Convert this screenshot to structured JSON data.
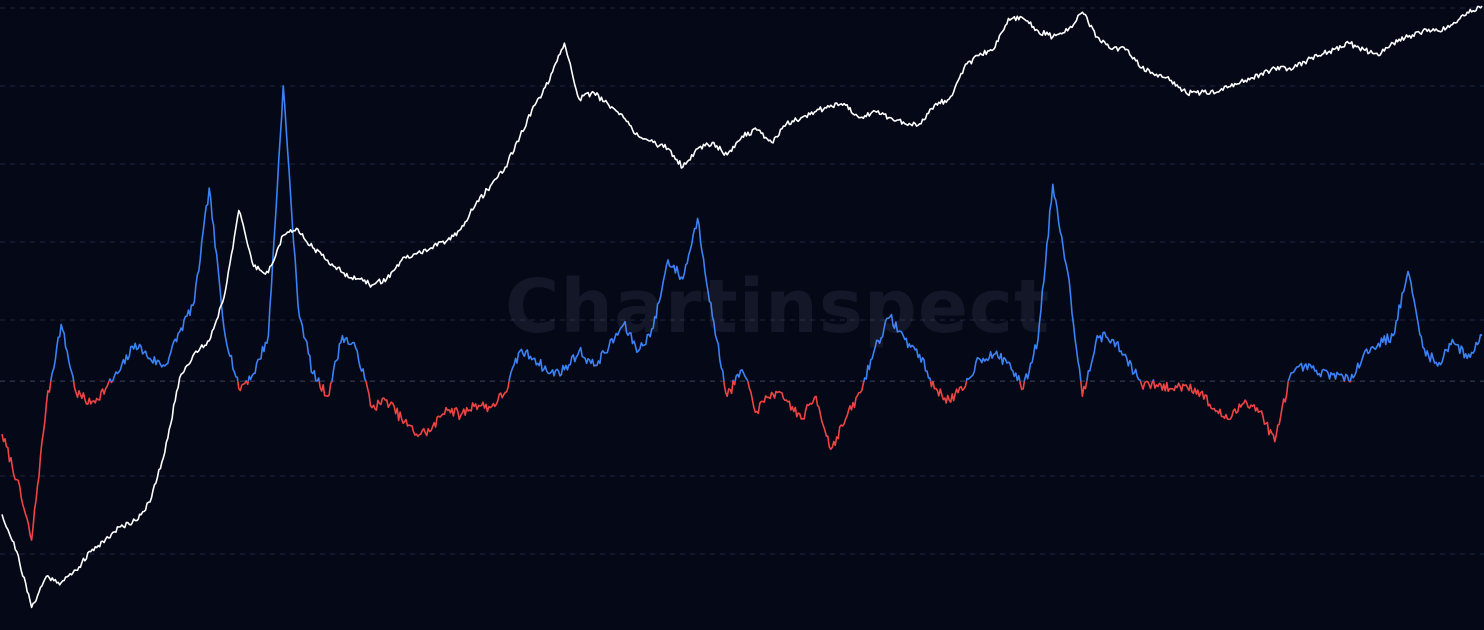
{
  "watermark": "Chartinspect",
  "chart_data": {
    "type": "line",
    "title": "",
    "xlabel": "",
    "ylabel": "",
    "grid": true,
    "legend": "none",
    "colors": {
      "background": "#050816",
      "gridline": "#1f2740",
      "price": "#ffffff",
      "oscillator_above": "#3b82f6",
      "oscillator_below": "#ef4444"
    },
    "note": "",
    "x": [
      0,
      1,
      2,
      3,
      4,
      5,
      6,
      7,
      8,
      9,
      10,
      11,
      12,
      13,
      14,
      15,
      16,
      17,
      18,
      19,
      20,
      21,
      22,
      23,
      24,
      25,
      26,
      27,
      28,
      29,
      30,
      31,
      32,
      33,
      34,
      35,
      36,
      37,
      38,
      39,
      40,
      41,
      42,
      43,
      44,
      45,
      46,
      47,
      48,
      49,
      50,
      51,
      52,
      53,
      54,
      55,
      56,
      57,
      58,
      59,
      60,
      61,
      62,
      63,
      64,
      65,
      66,
      67,
      68,
      69,
      70,
      71,
      72,
      73,
      74,
      75,
      76,
      77,
      78,
      79,
      80,
      81,
      82,
      83,
      84,
      85,
      86,
      87,
      88,
      89,
      90,
      91,
      92,
      93,
      94,
      95,
      96,
      97,
      98,
      99,
      100
    ],
    "series": [
      {
        "name": "",
        "role": "price",
        "ylim": [
          0,
          100
        ],
        "values": [
          18,
          12,
          3,
          8,
          7,
          9,
          12,
          14,
          16,
          17,
          20,
          28,
          40,
          44,
          46,
          53,
          67,
          58,
          57,
          63,
          64,
          61,
          59,
          57,
          56,
          55,
          56,
          59,
          60,
          61,
          62,
          64,
          68,
          71,
          74,
          79,
          84,
          88,
          94,
          85,
          86,
          84,
          82,
          79,
          78,
          77,
          74,
          77,
          78,
          76,
          79,
          80,
          78,
          81,
          82,
          83,
          84,
          84,
          82,
          83,
          82,
          81,
          81,
          84,
          85,
          90,
          92,
          93,
          98,
          98,
          96,
          95,
          96,
          99,
          95,
          93,
          93,
          90,
          89,
          88,
          86,
          86,
          86,
          87,
          88,
          89,
          90,
          90,
          91,
          92,
          93,
          94,
          93,
          92,
          94,
          95,
          96,
          96,
          97,
          99,
          100
        ]
      },
      {
        "name": "",
        "role": "oscillator",
        "baseline": 0,
        "ylim": [
          -5.2,
          8.8
        ],
        "values": [
          -1.4,
          -2.6,
          -4.2,
          -0.6,
          1.5,
          -0.3,
          -0.6,
          -0.2,
          0.3,
          1.0,
          0.6,
          0.4,
          1.3,
          2.1,
          5.1,
          1.4,
          -0.2,
          0.2,
          1.2,
          7.8,
          2.0,
          0.2,
          -0.4,
          1.2,
          0.8,
          -0.7,
          -0.5,
          -1.0,
          -1.4,
          -1.3,
          -0.7,
          -0.9,
          -0.6,
          -0.7,
          -0.3,
          0.8,
          0.6,
          0.2,
          0.3,
          0.8,
          0.4,
          0.9,
          1.5,
          0.8,
          1.4,
          3.2,
          2.7,
          4.3,
          1.7,
          -0.4,
          0.3,
          -0.8,
          -0.3,
          -0.5,
          -1.0,
          -0.4,
          -1.8,
          -1.0,
          -0.3,
          0.9,
          1.7,
          1.1,
          0.7,
          -0.2,
          -0.5,
          -0.2,
          0.6,
          0.7,
          0.5,
          -0.2,
          1.1,
          5.2,
          2.9,
          -0.4,
          1.2,
          1.1,
          0.6,
          -0.1,
          -0.1,
          -0.2,
          -0.1,
          -0.3,
          -0.8,
          -1.0,
          -0.5,
          -0.8,
          -1.6,
          0.1,
          0.4,
          0.2,
          0.2,
          0.0,
          0.7,
          1.0,
          1.2,
          2.9,
          0.9,
          0.4,
          1.1,
          0.6,
          1.2
        ]
      }
    ]
  }
}
